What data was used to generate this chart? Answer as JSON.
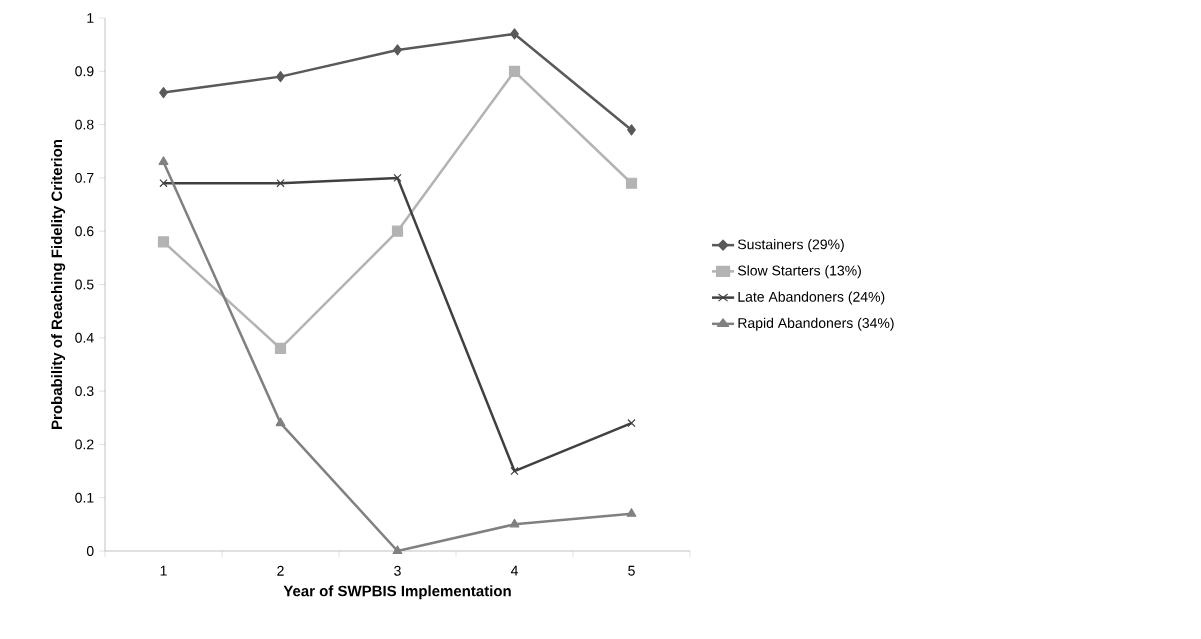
{
  "chart_data": {
    "type": "line",
    "xlabel": "Year of SWPBIS Implementation",
    "ylabel": "Probability of Reaching Fidelity Criterion",
    "categories": [
      "1",
      "2",
      "3",
      "4",
      "5"
    ],
    "series": [
      {
        "name": "Sustainers (29%)",
        "color": "#595959",
        "marker": "diamond",
        "values": [
          0.86,
          0.89,
          0.94,
          0.97,
          0.79
        ]
      },
      {
        "name": "Slow Starters (13%)",
        "color": "#b3b3b3",
        "marker": "square",
        "values": [
          0.58,
          0.38,
          0.6,
          0.9,
          0.69
        ]
      },
      {
        "name": "Late Abandoners (24%)",
        "color": "#404040",
        "marker": "cross",
        "values": [
          0.69,
          0.69,
          0.7,
          0.15,
          0.24
        ]
      },
      {
        "name": "Rapid Abandoners (34%)",
        "color": "#808080",
        "marker": "triangle",
        "values": [
          0.73,
          0.24,
          0.0,
          0.05,
          0.07
        ]
      }
    ],
    "ylim": [
      0,
      1
    ],
    "yticks": [
      0,
      0.1,
      0.2,
      0.3,
      0.4,
      0.5,
      0.6,
      0.7,
      0.8,
      0.9,
      1
    ],
    "grid": false,
    "legend": "right",
    "line_style": "solid"
  }
}
